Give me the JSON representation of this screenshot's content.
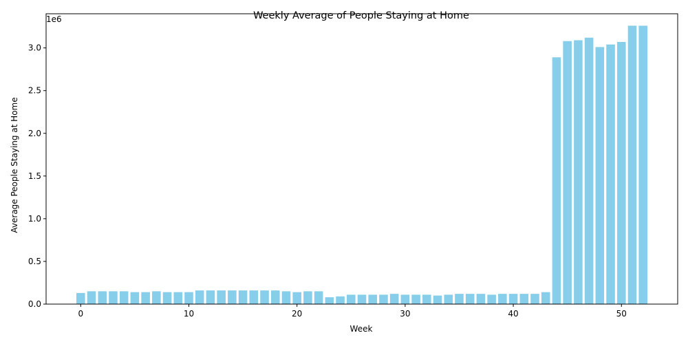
{
  "chart_data": {
    "type": "bar",
    "title": "Weekly Average of People Staying at Home",
    "xlabel": "Week",
    "ylabel": "Average People Staying at Home",
    "y_multiplier_label": "1e6",
    "bar_color": "#87ceeb",
    "grid": false,
    "xlim": [
      -3.2,
      55.2
    ],
    "ylim": [
      0,
      3.4
    ],
    "x_ticks": [
      0,
      10,
      20,
      30,
      40,
      50
    ],
    "x_tick_labels": [
      "0",
      "10",
      "20",
      "30",
      "40",
      "50"
    ],
    "y_ticks": [
      0,
      0.5,
      1.0,
      1.5,
      2.0,
      2.5,
      3.0
    ],
    "y_tick_labels": [
      "0.0",
      "0.5",
      "1.0",
      "1.5",
      "2.0",
      "2.5",
      "3.0"
    ],
    "x": [
      0,
      1,
      2,
      3,
      4,
      5,
      6,
      7,
      8,
      9,
      10,
      11,
      12,
      13,
      14,
      15,
      16,
      17,
      18,
      19,
      20,
      21,
      22,
      23,
      24,
      25,
      26,
      27,
      28,
      29,
      30,
      31,
      32,
      33,
      34,
      35,
      36,
      37,
      38,
      39,
      40,
      41,
      42,
      43,
      44,
      45,
      46,
      47,
      48,
      49,
      50,
      51,
      52
    ],
    "values": [
      0.13,
      0.15,
      0.15,
      0.15,
      0.15,
      0.14,
      0.14,
      0.15,
      0.14,
      0.14,
      0.14,
      0.16,
      0.16,
      0.16,
      0.16,
      0.16,
      0.16,
      0.16,
      0.16,
      0.15,
      0.14,
      0.15,
      0.15,
      0.08,
      0.09,
      0.11,
      0.11,
      0.11,
      0.11,
      0.12,
      0.11,
      0.11,
      0.11,
      0.1,
      0.11,
      0.12,
      0.12,
      0.12,
      0.11,
      0.12,
      0.12,
      0.12,
      0.12,
      0.14,
      2.89,
      3.08,
      3.09,
      3.12,
      3.01,
      3.04,
      3.07,
      3.26,
      3.26
    ]
  }
}
